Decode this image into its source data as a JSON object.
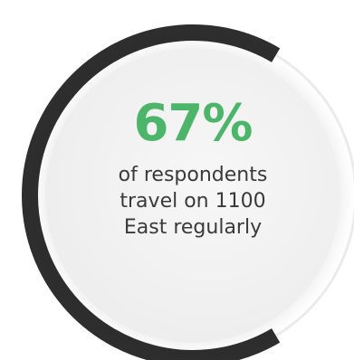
{
  "chart_data": {
    "type": "pie",
    "variant": "donut-ring",
    "values": [
      67,
      33
    ],
    "value_label": "67%",
    "caption_lines": [
      "of respondents",
      "travel on 1100",
      "East regularly"
    ],
    "colors": {
      "filled": "#2e2e2e",
      "track": "#ececec",
      "value_text": "#4db56a",
      "caption_text": "#3a3a3a"
    }
  }
}
